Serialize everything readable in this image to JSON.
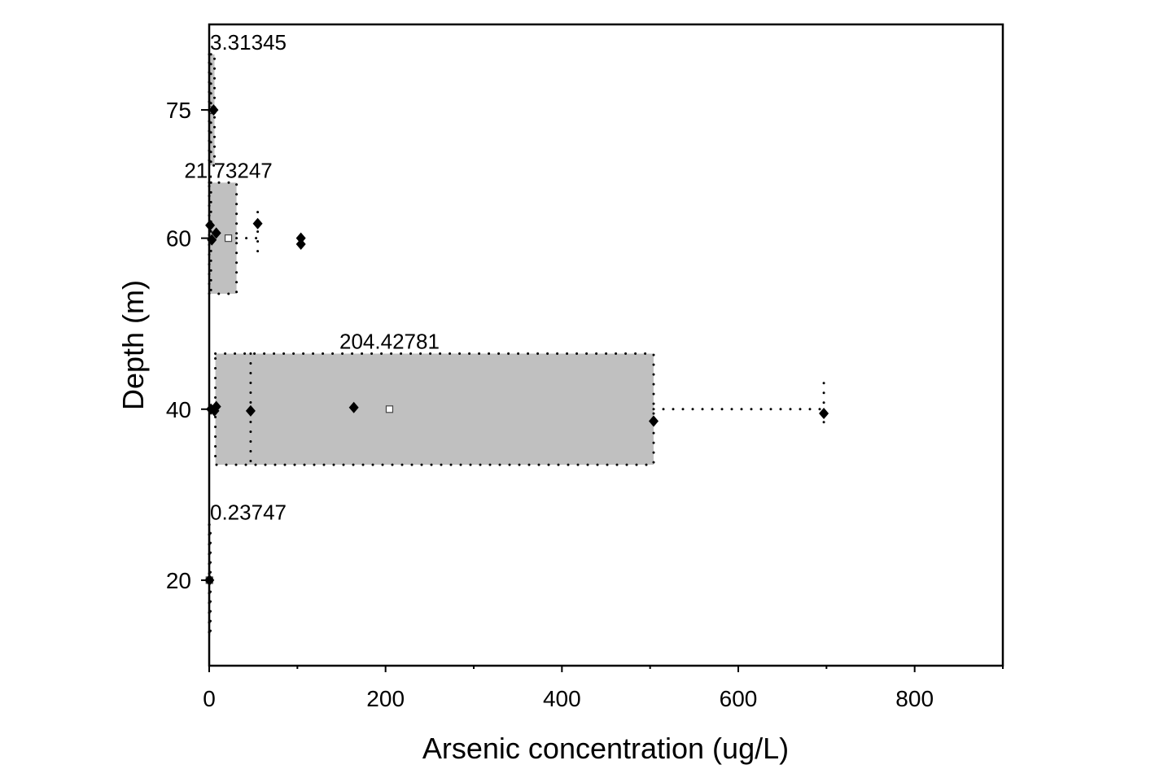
{
  "chart_data": {
    "type": "box",
    "orientation": "horizontal",
    "xlabel": "Arsenic concentration (ug/L)",
    "ylabel": "Depth (m)",
    "xlim": [
      0,
      900
    ],
    "ylim": [
      10,
      85
    ],
    "xticks": [
      0,
      200,
      400,
      600,
      800
    ],
    "yticks": [
      20,
      40,
      60,
      75
    ],
    "grid": false,
    "box_color": "#c0c0c0",
    "groups": [
      {
        "depth": 75,
        "label": "3.31345",
        "mean": 3.31345,
        "q1": 0,
        "median": 2,
        "q3": 6,
        "whisker_low": 0,
        "whisker_high": 6,
        "points": [
          [
            5,
            75
          ]
        ]
      },
      {
        "depth": 60,
        "label": "21.73247",
        "mean": 21.73247,
        "q1": 0,
        "median": 2,
        "q3": 31,
        "whisker_low": 0,
        "whisker_high": 55,
        "points": [
          [
            1,
            61.5
          ],
          [
            8,
            60.6
          ],
          [
            3,
            59.8
          ],
          [
            55,
            61.7
          ],
          [
            104,
            60
          ],
          [
            104,
            59.3
          ]
        ]
      },
      {
        "depth": 40,
        "label": "204.42781",
        "mean": 204.42781,
        "q1": 7,
        "median": 47,
        "q3": 504,
        "whisker_low": 7,
        "whisker_high": 697,
        "points": [
          [
            2,
            40
          ],
          [
            8,
            40.3
          ],
          [
            6,
            39.8
          ],
          [
            47,
            39.8
          ],
          [
            164,
            40.2
          ],
          [
            504,
            38.6
          ],
          [
            697,
            39.5
          ]
        ]
      },
      {
        "depth": 20,
        "label": "0.23747",
        "mean": 0.23747,
        "q1": 0,
        "median": 0.2,
        "q3": 0.5,
        "whisker_low": 0,
        "whisker_high": 0.5,
        "points": [
          [
            0.3,
            20
          ]
        ]
      }
    ]
  }
}
